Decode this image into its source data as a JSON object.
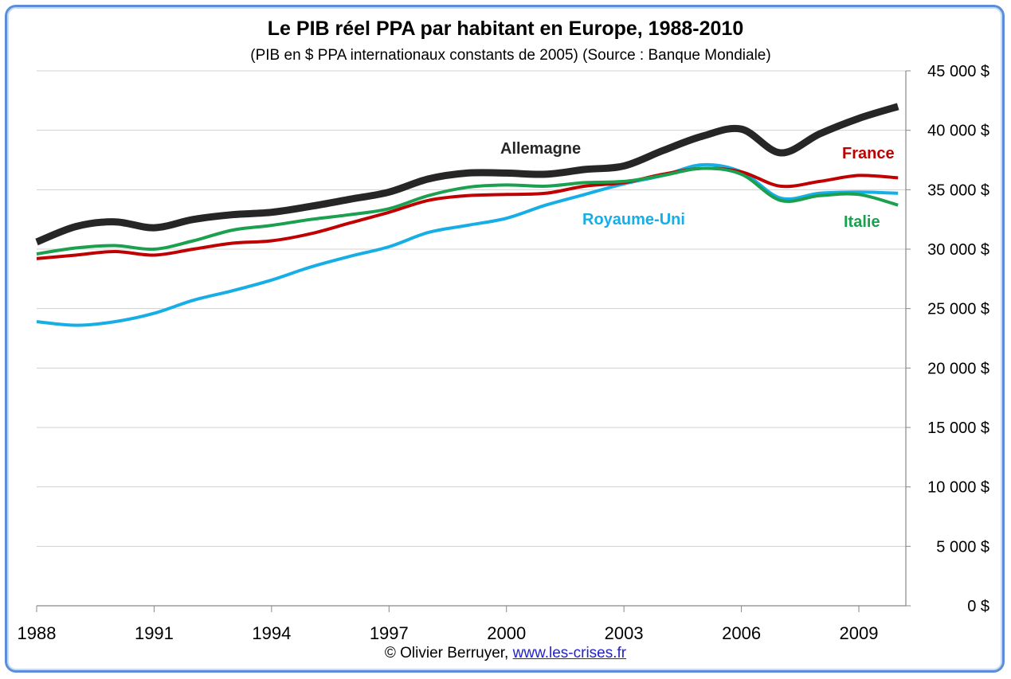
{
  "chart_data": {
    "type": "line",
    "title": "Le PIB réel PPA par habitant en Europe, 1988-2010",
    "subtitle": "(PIB en $ PPA internationaux constants de 2005) (Source : Banque Mondiale)",
    "credit_text": "© Olivier Berruyer,",
    "credit_link": "www.les-crises.fr",
    "x": [
      1988,
      1989,
      1990,
      1991,
      1992,
      1993,
      1994,
      1995,
      1996,
      1997,
      1998,
      1999,
      2000,
      2001,
      2002,
      2003,
      2004,
      2005,
      2006,
      2007,
      2008,
      2009,
      2010
    ],
    "x_ticks": [
      "1988",
      "1991",
      "1994",
      "1997",
      "2000",
      "2003",
      "2006",
      "2009"
    ],
    "xlim": [
      1988,
      2010.2
    ],
    "ylim": [
      0,
      45000
    ],
    "y_ticks": [
      "0 $",
      "5 000 $",
      "10 000 $",
      "15 000 $",
      "20 000 $",
      "25 000 $",
      "30 000 $",
      "35 000 $",
      "40 000 $",
      "45 000 $"
    ],
    "y_axis_side": "right",
    "grid": "horizontal",
    "series": [
      {
        "name": "Royaume-Uni",
        "color": "#17aee6",
        "values": [
          23900,
          23600,
          23900,
          24600,
          25700,
          26500,
          27400,
          28500,
          29400,
          30200,
          31400,
          32000,
          32600,
          33700,
          34600,
          35500,
          36200,
          37100,
          36500,
          34300,
          34700,
          34800,
          34700
        ]
      },
      {
        "name": "France",
        "color": "#c00000",
        "values": [
          29200,
          29500,
          29800,
          29500,
          30000,
          30500,
          30700,
          31300,
          32200,
          33100,
          34100,
          34500,
          34600,
          34700,
          35300,
          35600,
          36300,
          36800,
          36500,
          35300,
          35700,
          36200,
          36000
        ]
      },
      {
        "name": "Italie",
        "color": "#1aa04e",
        "values": [
          29600,
          30100,
          30300,
          30000,
          30700,
          31600,
          32000,
          32500,
          32900,
          33400,
          34500,
          35200,
          35400,
          35300,
          35600,
          35700,
          36200,
          36800,
          36300,
          34100,
          34500,
          34600,
          33700
        ]
      },
      {
        "name": "Allemagne",
        "color": "#262626",
        "values": [
          30600,
          31900,
          32300,
          31800,
          32500,
          32900,
          33100,
          33600,
          34200,
          34800,
          35900,
          36400,
          36400,
          36300,
          36700,
          37000,
          38300,
          39500,
          40100,
          38100,
          39700,
          41000,
          42000
        ]
      }
    ],
    "series_labels": [
      {
        "text": "Allemagne",
        "color": "#262626"
      },
      {
        "text": "France",
        "color": "#c00000"
      },
      {
        "text": "Royaume-Uni",
        "color": "#17aee6"
      },
      {
        "text": "Italie",
        "color": "#1aa04e"
      }
    ]
  }
}
